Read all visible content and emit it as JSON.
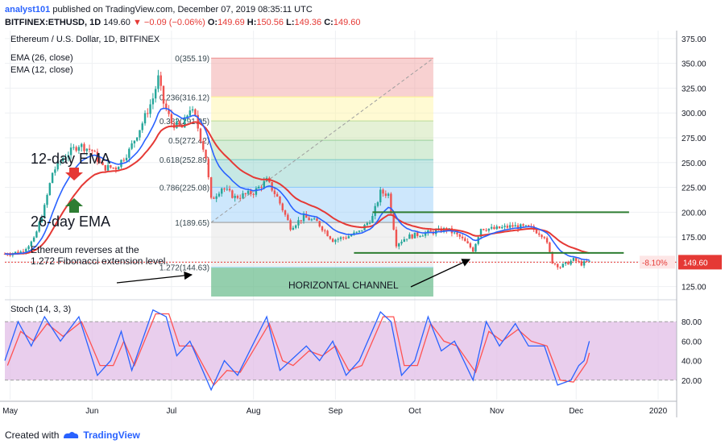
{
  "header": {
    "user": "analyst101",
    "published_text": "published on TradingView.com, December 07, 2019 08:35:11 UTC",
    "symbol": "BITFINEX:ETHUSD, 1D",
    "last": "149.60",
    "change": "−0.09 (−0.06%)",
    "ohlc": {
      "o_label": "O:",
      "o": "149.69",
      "h_label": "H:",
      "h": "150.56",
      "l_label": "L:",
      "l": "149.36",
      "c_label": "C:",
      "c": "149.60"
    }
  },
  "legend": {
    "title": "Ethereum / U.S. Dollar, 1D, BITFINEX",
    "ema26": "EMA (26, close)",
    "ema12": "EMA (12, close)"
  },
  "annotations": {
    "ema12_label": "12-day EMA",
    "ema26_label": "26-day EMA",
    "reversal_line1": "Ethereum reverses at the",
    "reversal_line2": "1.272 Fibonacci extension level.",
    "channel": "HORIZONTAL CHANNEL"
  },
  "price_tag": {
    "pct": "-8.10%",
    "price": "149.60"
  },
  "stoch": {
    "label": "Stoch (14, 3, 3)"
  },
  "footer": {
    "created_with": "Created with",
    "brand": "TradingView"
  },
  "colors": {
    "up": "#26a69a",
    "down": "#ef5350",
    "ema12": "#2962ff",
    "ema26": "#e53935",
    "channel": "#2e7d32",
    "stoch_k": "#2962ff",
    "stoch_d": "#ff5252",
    "stoch_band": "#e1bee7"
  },
  "chart_data": [
    {
      "type": "candlestick",
      "title": "Ethereum / U.S. Dollar, 1D, BITFINEX",
      "y_axis_ticks": [
        125,
        150,
        175,
        200,
        225,
        250,
        275,
        300,
        325,
        350,
        375
      ],
      "ylim": [
        115,
        383
      ],
      "x_axis_ticks": [
        "May",
        "Jun",
        "Jul",
        "Aug",
        "Sep",
        "Oct",
        "Nov",
        "Dec",
        "2020"
      ],
      "x_tick_dates": [
        "2019-05-01",
        "2019-06-01",
        "2019-07-01",
        "2019-08-01",
        "2019-09-01",
        "2019-10-01",
        "2019-11-01",
        "2019-12-01",
        "2020-01-01"
      ],
      "xlim": [
        "2019-04-29",
        "2020-01-08"
      ],
      "price_path": [
        {
          "date": "2019-04-29",
          "close": 158
        },
        {
          "date": "2019-05-05",
          "close": 160
        },
        {
          "date": "2019-05-10",
          "close": 172
        },
        {
          "date": "2019-05-14",
          "close": 205
        },
        {
          "date": "2019-05-17",
          "close": 240
        },
        {
          "date": "2019-05-21",
          "close": 255
        },
        {
          "date": "2019-05-27",
          "close": 268
        },
        {
          "date": "2019-06-01",
          "close": 262
        },
        {
          "date": "2019-06-05",
          "close": 245
        },
        {
          "date": "2019-06-10",
          "close": 245
        },
        {
          "date": "2019-06-15",
          "close": 262
        },
        {
          "date": "2019-06-20",
          "close": 290
        },
        {
          "date": "2019-06-24",
          "close": 315
        },
        {
          "date": "2019-06-26",
          "close": 335
        },
        {
          "date": "2019-06-28",
          "close": 310
        },
        {
          "date": "2019-07-01",
          "close": 290
        },
        {
          "date": "2019-07-05",
          "close": 285
        },
        {
          "date": "2019-07-08",
          "close": 305
        },
        {
          "date": "2019-07-10",
          "close": 295
        },
        {
          "date": "2019-07-14",
          "close": 255
        },
        {
          "date": "2019-07-16",
          "close": 212
        },
        {
          "date": "2019-07-20",
          "close": 225
        },
        {
          "date": "2019-07-25",
          "close": 215
        },
        {
          "date": "2019-08-01",
          "close": 220
        },
        {
          "date": "2019-08-06",
          "close": 232
        },
        {
          "date": "2019-08-10",
          "close": 215
        },
        {
          "date": "2019-08-15",
          "close": 185
        },
        {
          "date": "2019-08-20",
          "close": 195
        },
        {
          "date": "2019-08-25",
          "close": 190
        },
        {
          "date": "2019-08-31",
          "close": 172
        },
        {
          "date": "2019-09-05",
          "close": 175
        },
        {
          "date": "2019-09-10",
          "close": 180
        },
        {
          "date": "2019-09-15",
          "close": 195
        },
        {
          "date": "2019-09-18",
          "close": 220
        },
        {
          "date": "2019-09-21",
          "close": 218
        },
        {
          "date": "2019-09-24",
          "close": 168
        },
        {
          "date": "2019-09-28",
          "close": 175
        },
        {
          "date": "2019-10-03",
          "close": 178
        },
        {
          "date": "2019-10-08",
          "close": 180
        },
        {
          "date": "2019-10-13",
          "close": 183
        },
        {
          "date": "2019-10-18",
          "close": 175
        },
        {
          "date": "2019-10-23",
          "close": 162
        },
        {
          "date": "2019-10-26",
          "close": 184
        },
        {
          "date": "2019-10-31",
          "close": 183
        },
        {
          "date": "2019-11-07",
          "close": 186
        },
        {
          "date": "2019-11-14",
          "close": 184
        },
        {
          "date": "2019-11-19",
          "close": 176
        },
        {
          "date": "2019-11-22",
          "close": 150
        },
        {
          "date": "2019-11-25",
          "close": 145
        },
        {
          "date": "2019-11-30",
          "close": 152
        },
        {
          "date": "2019-12-03",
          "close": 148
        },
        {
          "date": "2019-12-06",
          "close": 150
        }
      ],
      "fibonacci": {
        "start_date": "2019-07-16",
        "end_date": "2019-10-08",
        "levels": [
          {
            "ratio": "0",
            "price": 355.19,
            "label": "0(355.19)",
            "color": "#ef9a9a"
          },
          {
            "ratio": "0.236",
            "price": 316.12,
            "label": "0.236(316.12)",
            "color": "#fff59d"
          },
          {
            "ratio": "0.382",
            "price": 291.95,
            "label": "0.382(291.95)",
            "color": "#c5e1a5"
          },
          {
            "ratio": "0.5",
            "price": 272.42,
            "label": "0.5(272.42)",
            "color": "#a5d6a7"
          },
          {
            "ratio": "0.618",
            "price": 252.89,
            "label": "0.618(252.89)",
            "color": "#80cbc4"
          },
          {
            "ratio": "0.786",
            "price": 225.08,
            "label": "0.786(225.08)",
            "color": "#90caf9"
          },
          {
            "ratio": "1",
            "price": 189.65,
            "label": "1(189.65)",
            "color": "#e0e0e0"
          },
          {
            "ratio": "1.272",
            "price": 144.63,
            "label": "1.272(144.63)",
            "color": "#b3e5fc"
          }
        ],
        "extension_fill": "#66bb8a"
      },
      "channel": {
        "upper": {
          "from": "2019-09-15",
          "to": "2019-12-21",
          "price": 200
        },
        "lower": {
          "from": "2019-09-08",
          "to": "2019-12-19",
          "price": 159
        }
      },
      "current_price_line": 149.6
    },
    {
      "type": "line",
      "title": "Stoch (14, 3, 3)",
      "y_axis_ticks": [
        20,
        40,
        60,
        80
      ],
      "ylim": [
        0,
        100
      ],
      "band": [
        20,
        80
      ],
      "k_path": [
        {
          "date": "2019-04-29",
          "value": 40
        },
        {
          "date": "2019-05-04",
          "value": 80
        },
        {
          "date": "2019-05-09",
          "value": 55
        },
        {
          "date": "2019-05-14",
          "value": 85
        },
        {
          "date": "2019-05-20",
          "value": 60
        },
        {
          "date": "2019-05-27",
          "value": 85
        },
        {
          "date": "2019-06-03",
          "value": 25
        },
        {
          "date": "2019-06-08",
          "value": 40
        },
        {
          "date": "2019-06-12",
          "value": 70
        },
        {
          "date": "2019-06-16",
          "value": 30
        },
        {
          "date": "2019-06-24",
          "value": 92
        },
        {
          "date": "2019-06-29",
          "value": 85
        },
        {
          "date": "2019-07-03",
          "value": 45
        },
        {
          "date": "2019-07-08",
          "value": 60
        },
        {
          "date": "2019-07-16",
          "value": 10
        },
        {
          "date": "2019-07-21",
          "value": 40
        },
        {
          "date": "2019-07-26",
          "value": 25
        },
        {
          "date": "2019-08-06",
          "value": 85
        },
        {
          "date": "2019-08-11",
          "value": 30
        },
        {
          "date": "2019-08-15",
          "value": 40
        },
        {
          "date": "2019-08-21",
          "value": 55
        },
        {
          "date": "2019-08-26",
          "value": 40
        },
        {
          "date": "2019-08-31",
          "value": 60
        },
        {
          "date": "2019-09-05",
          "value": 25
        },
        {
          "date": "2019-09-10",
          "value": 40
        },
        {
          "date": "2019-09-18",
          "value": 90
        },
        {
          "date": "2019-09-22",
          "value": 80
        },
        {
          "date": "2019-09-26",
          "value": 25
        },
        {
          "date": "2019-10-01",
          "value": 40
        },
        {
          "date": "2019-10-06",
          "value": 85
        },
        {
          "date": "2019-10-11",
          "value": 50
        },
        {
          "date": "2019-10-16",
          "value": 60
        },
        {
          "date": "2019-10-23",
          "value": 20
        },
        {
          "date": "2019-10-28",
          "value": 80
        },
        {
          "date": "2019-11-02",
          "value": 55
        },
        {
          "date": "2019-11-08",
          "value": 78
        },
        {
          "date": "2019-11-13",
          "value": 55
        },
        {
          "date": "2019-11-19",
          "value": 55
        },
        {
          "date": "2019-11-24",
          "value": 15
        },
        {
          "date": "2019-11-29",
          "value": 20
        },
        {
          "date": "2019-12-02",
          "value": 35
        },
        {
          "date": "2019-12-04",
          "value": 40
        },
        {
          "date": "2019-12-06",
          "value": 60
        }
      ],
      "d_path": [
        {
          "date": "2019-04-30",
          "value": 35
        },
        {
          "date": "2019-05-05",
          "value": 70
        },
        {
          "date": "2019-05-10",
          "value": 60
        },
        {
          "date": "2019-05-15",
          "value": 78
        },
        {
          "date": "2019-05-21",
          "value": 65
        },
        {
          "date": "2019-05-28",
          "value": 80
        },
        {
          "date": "2019-06-04",
          "value": 35
        },
        {
          "date": "2019-06-09",
          "value": 35
        },
        {
          "date": "2019-06-13",
          "value": 60
        },
        {
          "date": "2019-06-17",
          "value": 35
        },
        {
          "date": "2019-06-25",
          "value": 88
        },
        {
          "date": "2019-06-30",
          "value": 88
        },
        {
          "date": "2019-07-04",
          "value": 55
        },
        {
          "date": "2019-07-09",
          "value": 55
        },
        {
          "date": "2019-07-17",
          "value": 15
        },
        {
          "date": "2019-07-22",
          "value": 30
        },
        {
          "date": "2019-07-27",
          "value": 28
        },
        {
          "date": "2019-08-07",
          "value": 78
        },
        {
          "date": "2019-08-12",
          "value": 40
        },
        {
          "date": "2019-08-16",
          "value": 35
        },
        {
          "date": "2019-08-22",
          "value": 50
        },
        {
          "date": "2019-08-27",
          "value": 45
        },
        {
          "date": "2019-09-01",
          "value": 55
        },
        {
          "date": "2019-09-06",
          "value": 30
        },
        {
          "date": "2019-09-11",
          "value": 35
        },
        {
          "date": "2019-09-19",
          "value": 85
        },
        {
          "date": "2019-09-23",
          "value": 85
        },
        {
          "date": "2019-09-27",
          "value": 35
        },
        {
          "date": "2019-10-02",
          "value": 35
        },
        {
          "date": "2019-10-07",
          "value": 78
        },
        {
          "date": "2019-10-12",
          "value": 60
        },
        {
          "date": "2019-10-17",
          "value": 55
        },
        {
          "date": "2019-10-24",
          "value": 28
        },
        {
          "date": "2019-10-29",
          "value": 70
        },
        {
          "date": "2019-11-03",
          "value": 60
        },
        {
          "date": "2019-11-09",
          "value": 72
        },
        {
          "date": "2019-11-14",
          "value": 60
        },
        {
          "date": "2019-11-20",
          "value": 55
        },
        {
          "date": "2019-11-25",
          "value": 20
        },
        {
          "date": "2019-11-30",
          "value": 18
        },
        {
          "date": "2019-12-03",
          "value": 30
        },
        {
          "date": "2019-12-05",
          "value": 38
        },
        {
          "date": "2019-12-06",
          "value": 48
        }
      ]
    }
  ]
}
